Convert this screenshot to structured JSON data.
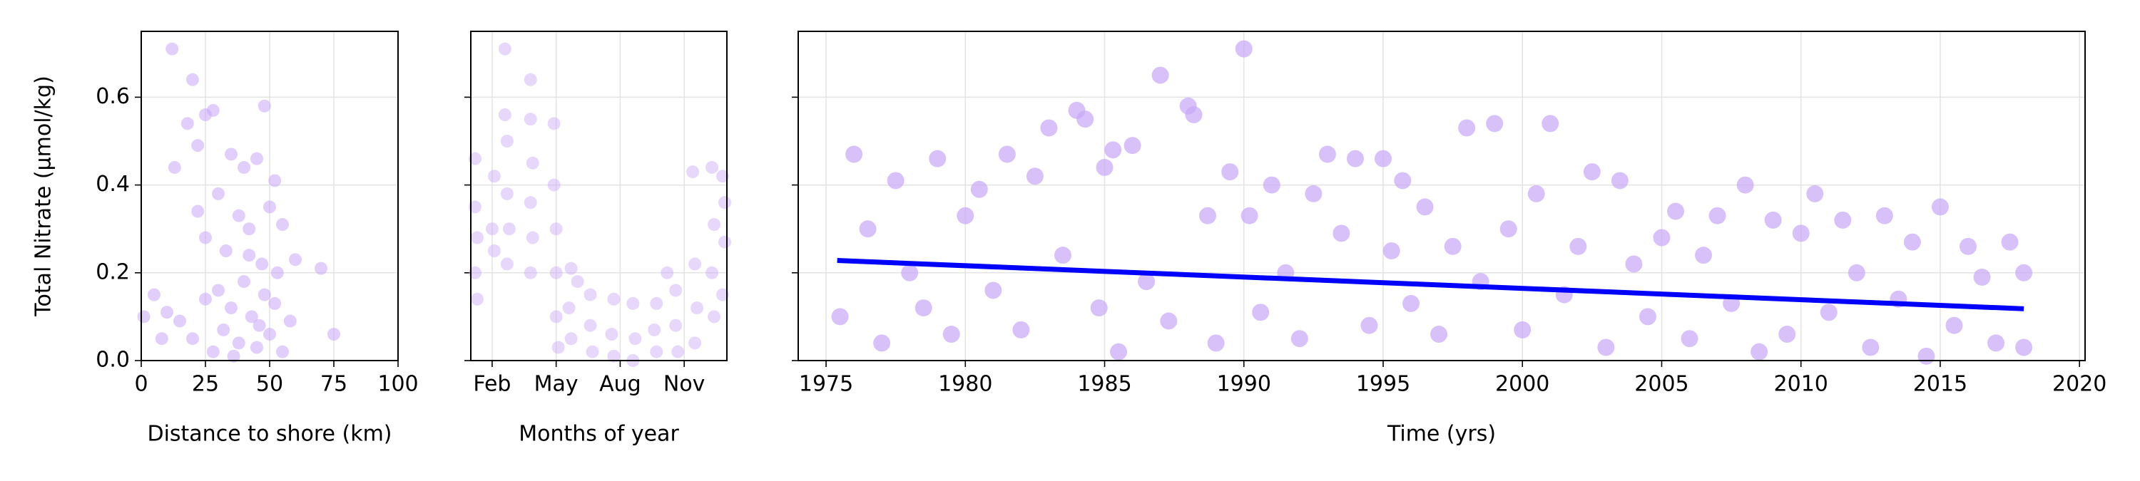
{
  "chart_data": [
    {
      "type": "scatter",
      "ylabel": "Total Nitrate (µmol/kg)",
      "xlabel": "Distance to shore (km)",
      "xlim": [
        0,
        100
      ],
      "xticks": [
        0,
        25,
        50,
        75,
        100
      ],
      "ylim": [
        0,
        0.75
      ],
      "yticks": [
        {
          "value": 0,
          "label": "0.0"
        },
        0.2,
        0.4,
        0.6
      ],
      "grid": true,
      "series": [
        {
          "color": "#c8a6f7",
          "x": [
            12,
            20,
            25,
            13,
            18,
            22,
            28,
            48,
            35,
            40,
            45,
            52,
            30,
            38,
            42,
            50,
            55,
            25,
            33,
            47,
            53,
            60,
            70,
            75,
            5,
            10,
            15,
            20,
            25,
            28,
            32,
            35,
            38,
            40,
            43,
            45,
            48,
            50,
            55,
            58,
            1,
            8,
            30,
            36,
            42,
            46,
            52,
            22
          ],
          "values": [
            0.71,
            0.64,
            0.56,
            0.44,
            0.54,
            0.49,
            0.57,
            0.58,
            0.47,
            0.44,
            0.46,
            0.41,
            0.38,
            0.33,
            0.3,
            0.35,
            0.31,
            0.28,
            0.25,
            0.22,
            0.2,
            0.23,
            0.21,
            0.06,
            0.15,
            0.11,
            0.09,
            0.05,
            0.14,
            0.02,
            0.07,
            0.12,
            0.04,
            0.18,
            0.1,
            0.03,
            0.15,
            0.06,
            0.02,
            0.09,
            0.1,
            0.05,
            0.16,
            0.01,
            0.24,
            0.08,
            0.13,
            0.34
          ]
        }
      ]
    },
    {
      "type": "scatter",
      "xlabel": "Months of year",
      "sharey": true,
      "xlim": [
        1,
        13
      ],
      "xticks": [
        {
          "value": 2,
          "label": "Feb"
        },
        {
          "value": 5,
          "label": "May"
        },
        {
          "value": 8,
          "label": "Aug"
        },
        {
          "value": 11,
          "label": "Nov"
        }
      ],
      "ylim": [
        0,
        0.75
      ],
      "yticks": [
        0,
        0.2,
        0.4,
        0.6
      ],
      "grid": true,
      "series": [
        {
          "color": "#c8a6f7",
          "x": [
            1.2,
            1.2,
            1.3,
            1.2,
            1.3,
            2.0,
            2.1,
            2.1,
            2.6,
            2.6,
            2.7,
            2.7,
            2.8,
            2.7,
            3.8,
            3.8,
            3.9,
            3.8,
            3.9,
            3.8,
            4.9,
            4.9,
            5.0,
            5.0,
            5.0,
            5.1,
            5.7,
            5.6,
            5.7,
            6.0,
            6.6,
            6.6,
            6.7,
            7.7,
            7.6,
            7.7,
            8.6,
            8.7,
            8.6,
            9.7,
            9.6,
            9.7,
            10.2,
            10.6,
            10.6,
            10.7,
            11.4,
            11.5,
            11.6,
            11.5,
            12.3,
            12.4,
            12.3,
            12.4,
            12.8,
            12.9,
            12.9,
            12.8
          ],
          "values": [
            0.46,
            0.35,
            0.28,
            0.2,
            0.14,
            0.3,
            0.42,
            0.25,
            0.71,
            0.56,
            0.5,
            0.38,
            0.3,
            0.22,
            0.64,
            0.55,
            0.45,
            0.36,
            0.28,
            0.2,
            0.54,
            0.4,
            0.3,
            0.2,
            0.1,
            0.03,
            0.21,
            0.12,
            0.05,
            0.18,
            0.15,
            0.08,
            0.02,
            0.14,
            0.06,
            0.01,
            0.13,
            0.05,
            0.0,
            0.13,
            0.07,
            0.02,
            0.2,
            0.16,
            0.08,
            0.02,
            0.43,
            0.22,
            0.12,
            0.04,
            0.44,
            0.31,
            0.2,
            0.1,
            0.42,
            0.36,
            0.27,
            0.15
          ]
        }
      ]
    },
    {
      "type": "scatter",
      "xlabel": "Time (yrs)",
      "sharey": true,
      "xlim": [
        1974,
        2020.2
      ],
      "xticks": [
        1975,
        1980,
        1985,
        1990,
        1995,
        2000,
        2005,
        2010,
        2015,
        2020
      ],
      "ylim": [
        0,
        0.75
      ],
      "yticks": [
        0,
        0.2,
        0.4,
        0.6
      ],
      "grid": true,
      "series": [
        {
          "color": "#c8a6f7",
          "x": [
            1975.5,
            1976,
            1976.5,
            1977,
            1977.5,
            1978,
            1978.5,
            1979,
            1979.5,
            1980,
            1980.5,
            1981,
            1981.5,
            1982,
            1982.5,
            1983,
            1983.5,
            1984,
            1984.3,
            1984.8,
            1985,
            1985.3,
            1985.5,
            1986,
            1986.5,
            1987,
            1987.3,
            1988,
            1988.2,
            1988.7,
            1989,
            1989.5,
            1990,
            1990.2,
            1990.6,
            1991,
            1991.5,
            1992,
            1992.5,
            1993,
            1993.5,
            1994,
            1994.5,
            1995,
            1995.3,
            1995.7,
            1996,
            1996.5,
            1997,
            1997.5,
            1998,
            1998.5,
            1999,
            1999.5,
            2000,
            2000.5,
            2001,
            2001.5,
            2002,
            2002.5,
            2003,
            2003.5,
            2004,
            2004.5,
            2005,
            2005.5,
            2006,
            2006.5,
            2007,
            2007.5,
            2008,
            2008.5,
            2009,
            2009.5,
            2010,
            2010.5,
            2011,
            2011.5,
            2012,
            2012.5,
            2013,
            2013.5,
            2014,
            2014.5,
            2015,
            2015.5,
            2016,
            2016.5,
            2017,
            2017.5,
            2018,
            2018
          ],
          "values": [
            0.1,
            0.47,
            0.3,
            0.04,
            0.41,
            0.2,
            0.12,
            0.46,
            0.06,
            0.33,
            0.39,
            0.16,
            0.47,
            0.07,
            0.42,
            0.53,
            0.24,
            0.57,
            0.55,
            0.12,
            0.44,
            0.48,
            0.02,
            0.49,
            0.18,
            0.65,
            0.09,
            0.58,
            0.56,
            0.33,
            0.04,
            0.43,
            0.71,
            0.33,
            0.11,
            0.4,
            0.2,
            0.05,
            0.38,
            0.47,
            0.29,
            0.46,
            0.08,
            0.46,
            0.25,
            0.41,
            0.13,
            0.35,
            0.06,
            0.26,
            0.53,
            0.18,
            0.54,
            0.3,
            0.07,
            0.38,
            0.54,
            0.15,
            0.26,
            0.43,
            0.03,
            0.41,
            0.22,
            0.1,
            0.28,
            0.34,
            0.05,
            0.24,
            0.33,
            0.13,
            0.4,
            0.02,
            0.32,
            0.06,
            0.29,
            0.38,
            0.11,
            0.32,
            0.2,
            0.03,
            0.33,
            0.14,
            0.27,
            0.01,
            0.35,
            0.08,
            0.26,
            0.19,
            0.04,
            0.27,
            0.2,
            0.03
          ]
        },
        {
          "type": "line",
          "color": "#0000ff",
          "x": [
            1975.4,
            2018
          ],
          "values": [
            0.228,
            0.118
          ]
        }
      ]
    }
  ]
}
